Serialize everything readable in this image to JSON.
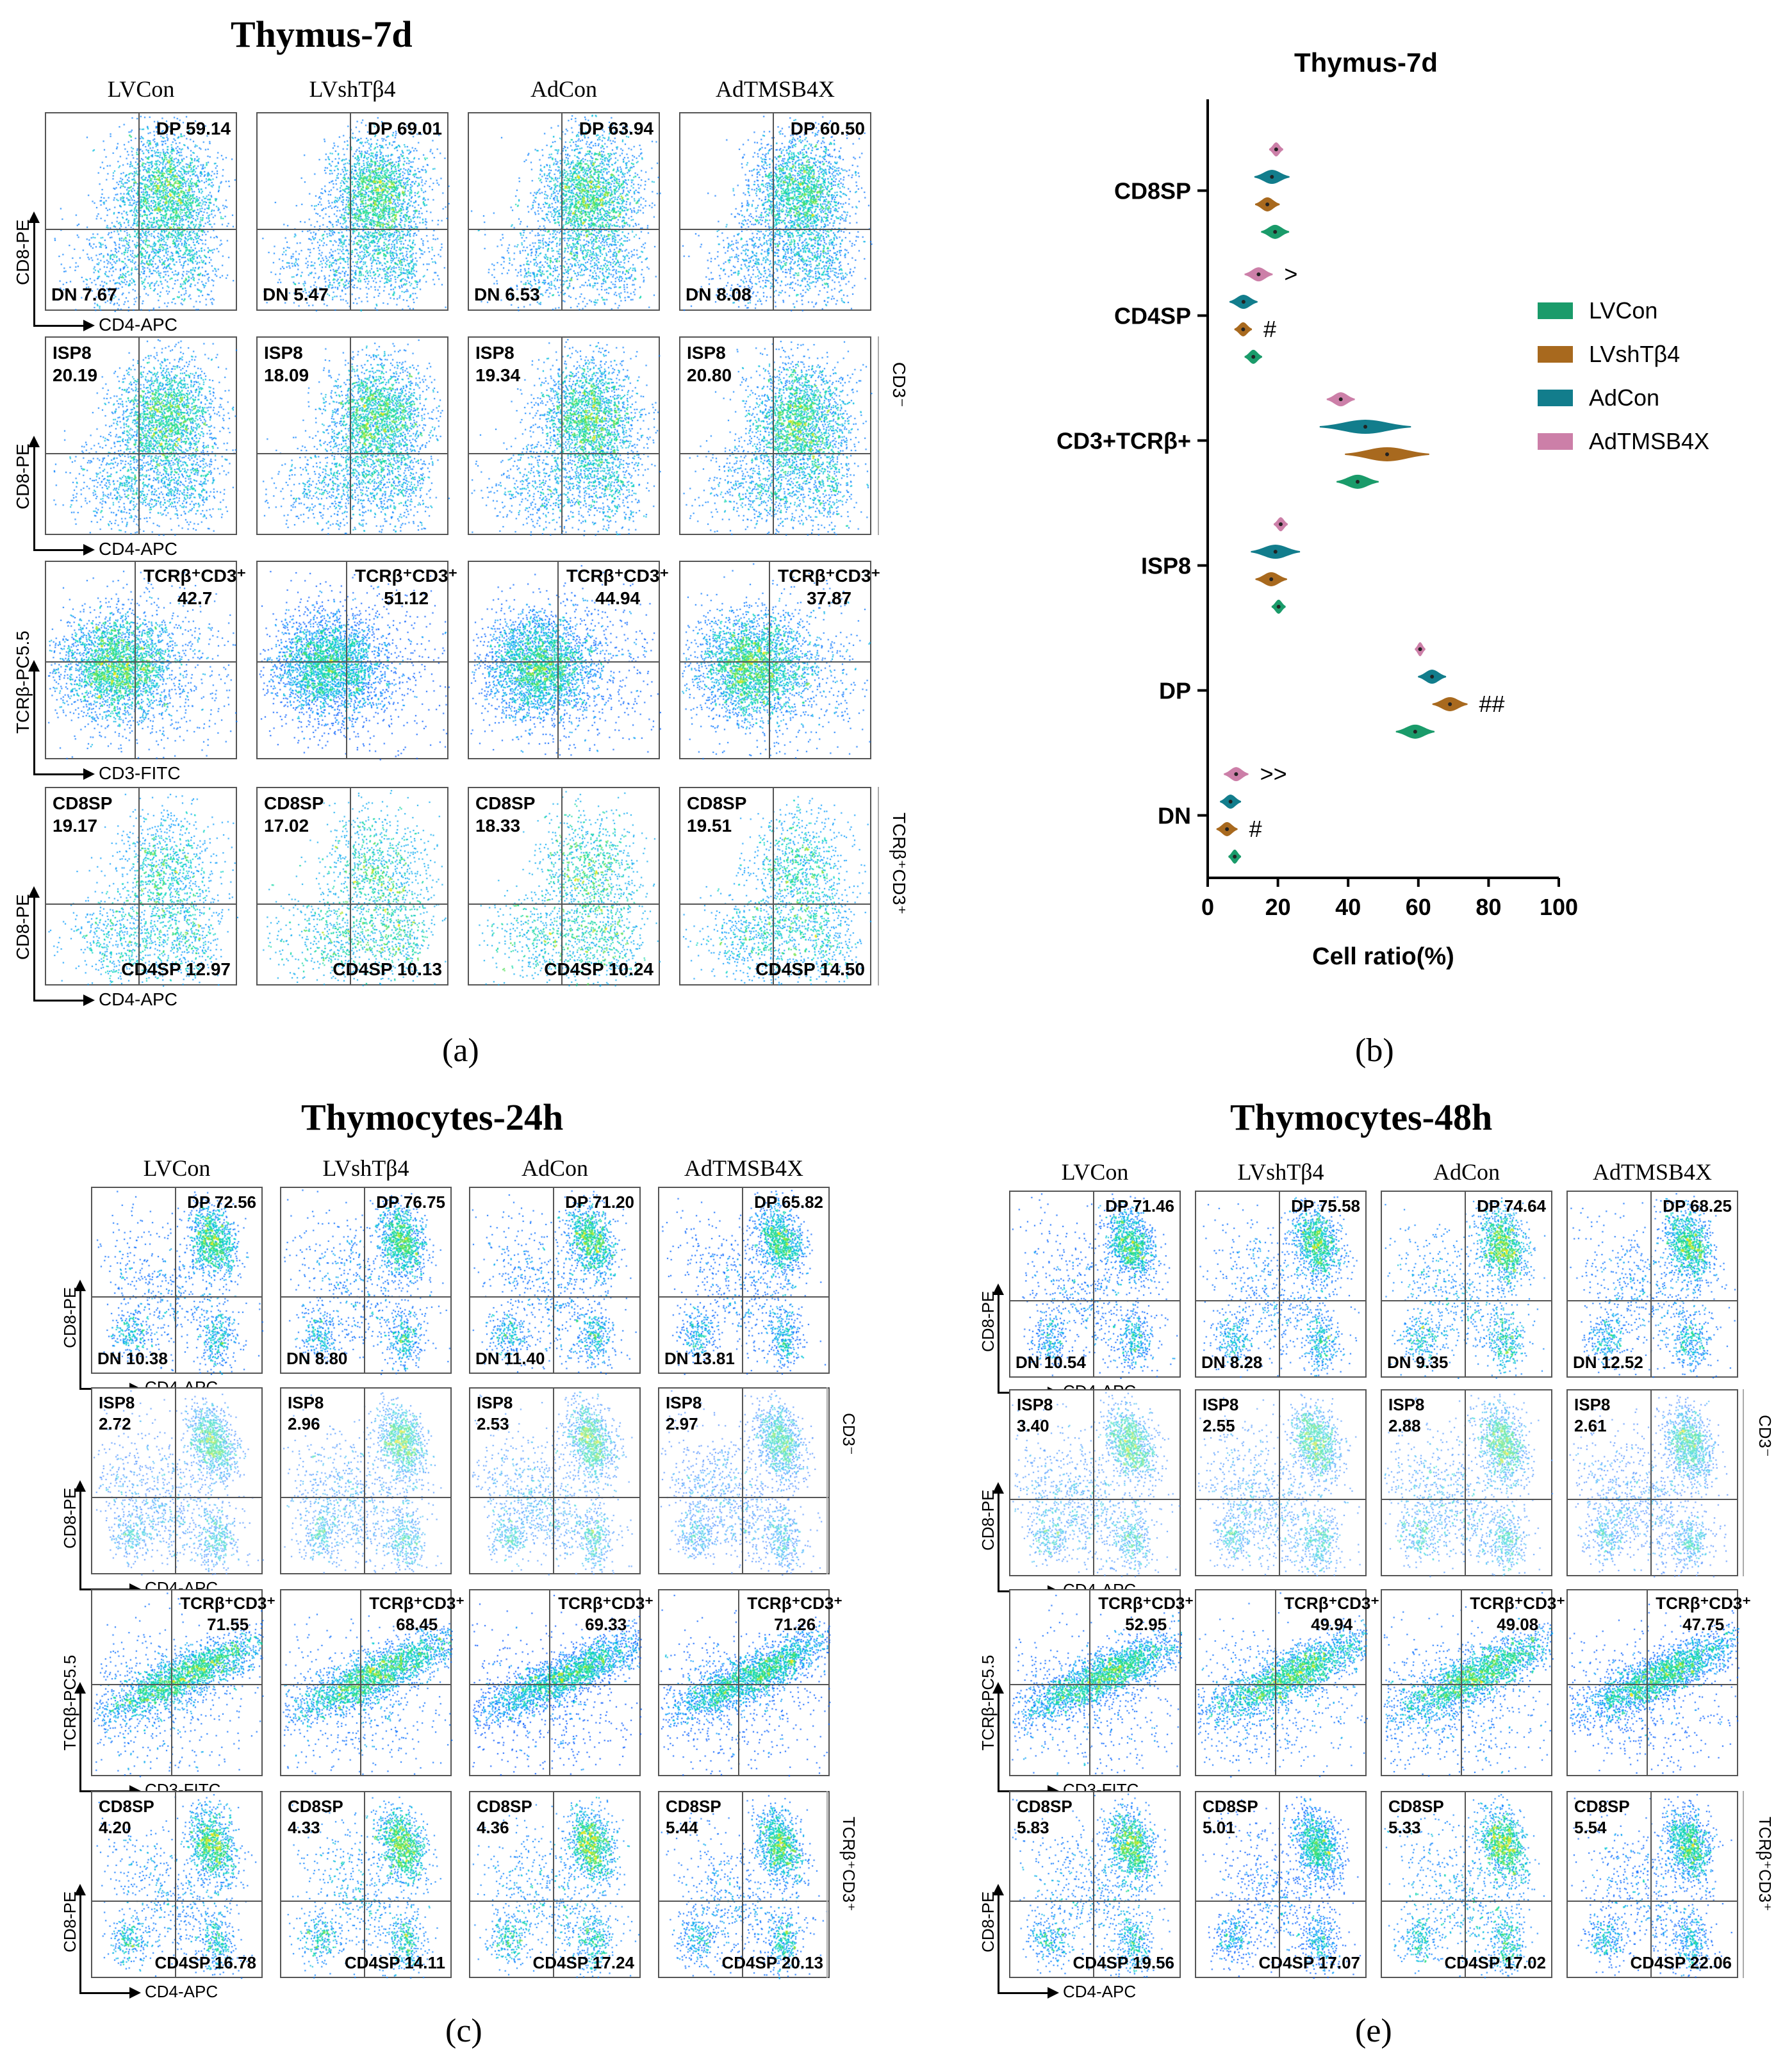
{
  "panels": {
    "a": {
      "label": "(a)",
      "title": "Thymus-7d",
      "columns": [
        "LVCon",
        "LVshTβ4",
        "AdCon",
        "AdTMSB4X"
      ],
      "rows": [
        {
          "y_axis": "CD8-PE",
          "x_axis": "CD4-APC",
          "gate": "",
          "cells": [
            [
              "DP 59.14",
              "DN 7.67"
            ],
            [
              "DP 69.01",
              "DN 5.47"
            ],
            [
              "DP 63.94",
              "DN 6.53"
            ],
            [
              "DP 60.50",
              "DN 8.08"
            ]
          ]
        },
        {
          "y_axis": "CD8-PE",
          "x_axis": "CD4-APC",
          "gate": "CD3⁻",
          "cells": [
            [
              "ISP8\n20.19"
            ],
            [
              "ISP8\n18.09"
            ],
            [
              "ISP8\n19.34"
            ],
            [
              "ISP8\n20.80"
            ]
          ]
        },
        {
          "y_axis": "TCRβ-PC5.5",
          "x_axis": "CD3-FITC",
          "gate": "",
          "cells": [
            [
              "TCRβ⁺CD3⁺\n42.7"
            ],
            [
              "TCRβ⁺CD3⁺\n51.12"
            ],
            [
              "TCRβ⁺CD3⁺\n44.94"
            ],
            [
              "TCRβ⁺CD3⁺\n37.87"
            ]
          ]
        },
        {
          "y_axis": "CD8-PE",
          "x_axis": "CD4-APC",
          "gate": "TCRβ⁺CD3⁺",
          "cells": [
            [
              "CD8SP\n19.17",
              "CD4SP 12.97"
            ],
            [
              "CD8SP\n17.02",
              "CD4SP 10.13"
            ],
            [
              "CD8SP\n18.33",
              "CD4SP 10.24"
            ],
            [
              "CD8SP\n19.51",
              "CD4SP 14.50"
            ]
          ]
        }
      ]
    },
    "b": {
      "label": "(b)",
      "chart_data": {
        "type": "violin",
        "title": "Thymus-7d",
        "xlabel": "Cell ratio(%)",
        "ylabel": "",
        "xlim": [
          0,
          100
        ],
        "xticks": [
          "0",
          "20",
          "40",
          "60",
          "80",
          "100"
        ],
        "categories": [
          "CD8SP",
          "CD4SP",
          "CD3+TCRβ+",
          "ISP8",
          "DP",
          "DN"
        ],
        "legend": {
          "position": "right",
          "entries": [
            "LVCon",
            "LVshTβ4",
            "AdCon",
            "AdTMSB4X"
          ]
        },
        "colors": {
          "LVCon": "#1a9b6a",
          "LVshTβ4": "#a8691e",
          "AdCon": "#127d8c",
          "AdTMSB4X": "#cc7fa8"
        },
        "series": [
          {
            "name": "AdTMSB4X",
            "values": [
              19.5,
              14.5,
              37.9,
              20.8,
              60.5,
              8.1
            ],
            "spread": [
              2,
              4,
              4,
              2,
              1.5,
              3.5
            ]
          },
          {
            "name": "AdCon",
            "values": [
              18.3,
              10.2,
              44.9,
              19.3,
              63.9,
              6.5
            ],
            "spread": [
              5,
              4,
              13,
              7,
              4,
              3
            ]
          },
          {
            "name": "LVshTβ4",
            "values": [
              17.0,
              10.1,
              51.1,
              18.1,
              69.0,
              5.5
            ],
            "spread": [
              3.5,
              2.5,
              12,
              4.5,
              5,
              3
            ]
          },
          {
            "name": "LVCon",
            "values": [
              19.2,
              13.0,
              42.7,
              20.2,
              59.1,
              7.7
            ],
            "spread": [
              4,
              2.5,
              6,
              2,
              5.5,
              1.8
            ]
          }
        ],
        "annotations": [
          {
            "category": "CD4SP",
            "series": "AdTMSB4X",
            "text": ">"
          },
          {
            "category": "CD4SP",
            "series": "LVshTβ4",
            "text": "#"
          },
          {
            "category": "DP",
            "series": "LVshTβ4",
            "text": "##"
          },
          {
            "category": "DN",
            "series": "AdTMSB4X",
            "text": ">>"
          },
          {
            "category": "DN",
            "series": "LVshTβ4",
            "text": "#"
          }
        ]
      }
    },
    "c": {
      "label": "(c)",
      "title": "Thymocytes-24h",
      "columns": [
        "LVCon",
        "LVshTβ4",
        "AdCon",
        "AdTMSB4X"
      ],
      "rows": [
        {
          "y_axis": "CD8-PE",
          "x_axis": "CD4-APC",
          "gate": "",
          "cells": [
            [
              "DP 72.56",
              "DN 10.38"
            ],
            [
              "DP 76.75",
              "DN 8.80"
            ],
            [
              "DP 71.20",
              "DN 11.40"
            ],
            [
              "DP 65.82",
              "DN 13.81"
            ]
          ]
        },
        {
          "y_axis": "CD8-PE",
          "x_axis": "CD4-APC",
          "gate": "CD3⁻",
          "cells": [
            [
              "ISP8\n2.72"
            ],
            [
              "ISP8\n2.96"
            ],
            [
              "ISP8\n2.53"
            ],
            [
              "ISP8\n2.97"
            ]
          ]
        },
        {
          "y_axis": "TCRβ-PC5.5",
          "x_axis": "CD3-FITC",
          "gate": "",
          "cells": [
            [
              "TCRβ⁺CD3⁺\n71.55"
            ],
            [
              "TCRβ⁺CD3⁺\n68.45"
            ],
            [
              "TCRβ⁺CD3⁺\n69.33"
            ],
            [
              "TCRβ⁺CD3⁺\n71.26"
            ]
          ]
        },
        {
          "y_axis": "CD8-PE",
          "x_axis": "CD4-APC",
          "gate": "TCRβ⁺CD3⁺",
          "cells": [
            [
              "CD8SP\n4.20",
              "CD4SP 16.78"
            ],
            [
              "CD8SP\n4.33",
              "CD4SP 14.11"
            ],
            [
              "CD8SP\n4.36",
              "CD4SP 17.24"
            ],
            [
              "CD8SP\n5.44",
              "CD4SP 20.13"
            ]
          ]
        }
      ]
    },
    "e": {
      "label": "(e)",
      "title": "Thymocytes-48h",
      "columns": [
        "LVCon",
        "LVshTβ4",
        "AdCon",
        "AdTMSB4X"
      ],
      "rows": [
        {
          "y_axis": "CD8-PE",
          "x_axis": "CD4-APC",
          "gate": "",
          "cells": [
            [
              "DP 71.46",
              "DN 10.54"
            ],
            [
              "DP 75.58",
              "DN 8.28"
            ],
            [
              "DP 74.64",
              "DN 9.35"
            ],
            [
              "DP 68.25",
              "DN 12.52"
            ]
          ]
        },
        {
          "y_axis": "CD8-PE",
          "x_axis": "CD4-APC",
          "gate": "CD3⁻",
          "cells": [
            [
              "ISP8\n3.40"
            ],
            [
              "ISP8\n2.55"
            ],
            [
              "ISP8\n2.88"
            ],
            [
              "ISP8\n2.61"
            ]
          ]
        },
        {
          "y_axis": "TCRβ-PC5.5",
          "x_axis": "CD3-FITC",
          "gate": "",
          "cells": [
            [
              "TCRβ⁺CD3⁺\n52.95"
            ],
            [
              "TCRβ⁺CD3⁺\n49.94"
            ],
            [
              "TCRβ⁺CD3⁺\n49.08"
            ],
            [
              "TCRβ⁺CD3⁺\n47.75"
            ]
          ]
        },
        {
          "y_axis": "CD8-PE",
          "x_axis": "CD4-APC",
          "gate": "TCRβ⁺CD3⁺",
          "cells": [
            [
              "CD8SP\n5.83",
              "CD4SP 19.56"
            ],
            [
              "CD8SP\n5.01",
              "CD4SP 17.07"
            ],
            [
              "CD8SP\n5.33",
              "CD4SP 17.02"
            ],
            [
              "CD8SP\n5.54",
              "CD4SP 22.06"
            ]
          ]
        }
      ]
    }
  }
}
